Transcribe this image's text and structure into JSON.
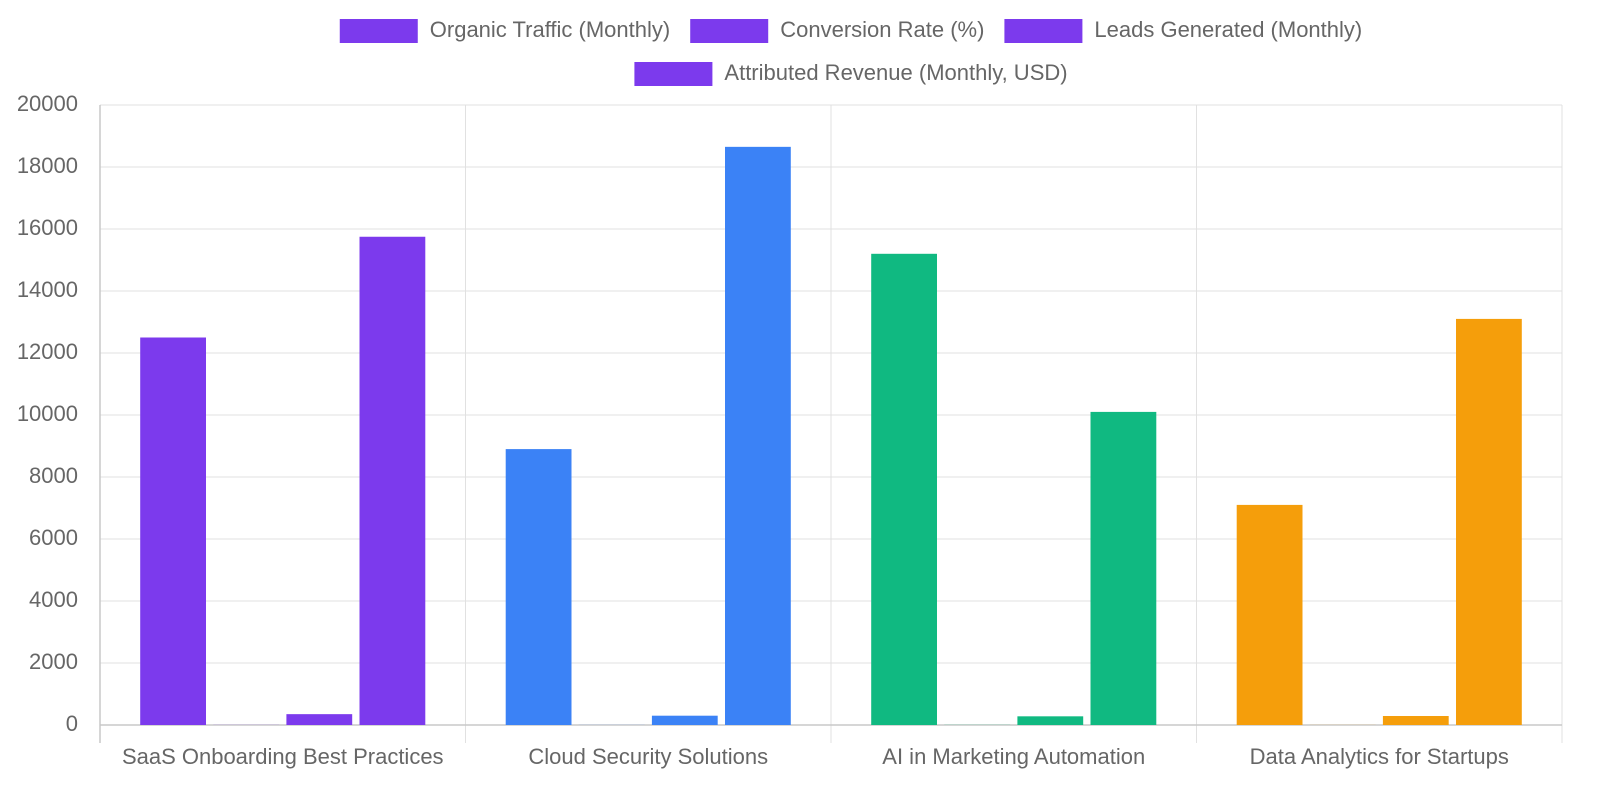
{
  "chart_data": {
    "type": "bar",
    "categories": [
      "SaaS Onboarding Best Practices",
      "Cloud Security Solutions",
      "AI in Marketing Automation",
      "Data Analytics for Startups"
    ],
    "series": [
      {
        "name": "Organic Traffic (Monthly)",
        "colors": [
          "#7c3aed",
          "#3b82f6",
          "#10b981",
          "#f59e0b"
        ],
        "values": [
          12500,
          8900,
          15200,
          7100
        ]
      },
      {
        "name": "Conversion Rate (%)",
        "colors": [
          "#7c3aed",
          "#3b82f6",
          "#10b981",
          "#f59e0b"
        ],
        "values": [
          3.2,
          2.8,
          4.1,
          2.5
        ]
      },
      {
        "name": "Leads Generated (Monthly)",
        "colors": [
          "#7c3aed",
          "#3b82f6",
          "#10b981",
          "#f59e0b"
        ],
        "values": [
          350,
          300,
          280,
          290
        ]
      },
      {
        "name": "Attributed Revenue (Monthly, USD)",
        "colors": [
          "#7c3aed",
          "#3b82f6",
          "#10b981",
          "#f59e0b"
        ],
        "values": [
          15750,
          18650,
          10100,
          13100
        ]
      }
    ],
    "ylim": [
      0,
      20000
    ],
    "yticks": [
      0,
      2000,
      4000,
      6000,
      8000,
      10000,
      12000,
      14000,
      16000,
      18000,
      20000
    ],
    "grid": true
  }
}
